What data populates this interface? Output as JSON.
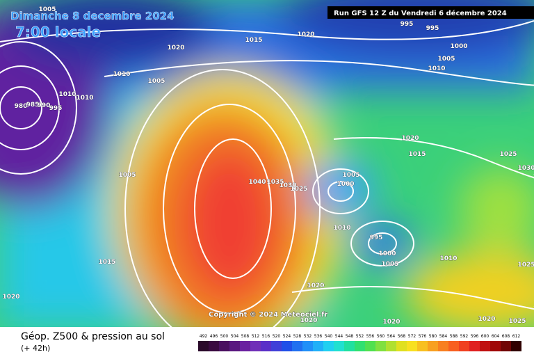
{
  "header": {
    "date": "Dimanche 8 decembre 2024",
    "time": "7:00 locale",
    "run": "Run GFS 12 Z du Vendredi 6 décembre 2024"
  },
  "map": {
    "isobar_labels": [
      "1005",
      "1020",
      "1015",
      "1020",
      "995",
      "995",
      "1000",
      "1005",
      "1010",
      "1010",
      "1005",
      "1010",
      "1010",
      "980",
      "985",
      "990",
      "995",
      "1020",
      "1015",
      "1025",
      "1030",
      "1005",
      "1005",
      "1000",
      "1040",
      "1035",
      "1030",
      "1025",
      "1010",
      "995",
      "1000",
      "1005",
      "1010",
      "1015",
      "1025",
      "1020",
      "1020",
      "1020",
      "1020",
      "1020",
      "1025"
    ],
    "copyright": "Copyright © 2024 Meteociel.fr"
  },
  "footer": {
    "caption": "Géop. Z500 & pression au sol",
    "lead": "(+ 42h)",
    "scale": [
      492,
      496,
      500,
      504,
      508,
      512,
      516,
      520,
      524,
      528,
      532,
      536,
      540,
      544,
      548,
      552,
      556,
      560,
      564,
      568,
      572,
      576,
      580,
      584,
      588,
      592,
      596,
      600,
      604,
      608,
      612
    ]
  }
}
